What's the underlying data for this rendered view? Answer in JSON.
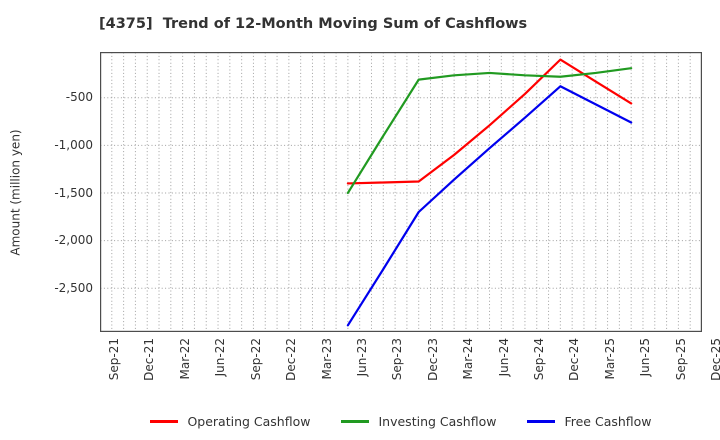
{
  "colors": {
    "background": "#ffffff",
    "text": "#333333",
    "axis_border": "#4d4d4d",
    "gridline": "#a0a0a0"
  },
  "chart_data": {
    "type": "line",
    "title": "[4375]  Trend of 12-Month Moving Sum of Cashflows",
    "ylabel": "Amount (million yen)",
    "xlabel": "",
    "categories": [
      "Sep-21",
      "Dec-21",
      "Mar-22",
      "Jun-22",
      "Sep-22",
      "Dec-22",
      "Mar-23",
      "Jun-23",
      "Sep-23",
      "Dec-23",
      "Mar-24",
      "Jun-24",
      "Sep-24",
      "Dec-24",
      "Mar-25",
      "Jun-25",
      "Sep-25",
      "Dec-25"
    ],
    "x_minor_gridlines_per_interval": 3,
    "ylim": [
      -2960,
      -20
    ],
    "yticks": [
      {
        "value": -500,
        "label": "-500"
      },
      {
        "value": -1000,
        "label": "-1,000"
      },
      {
        "value": -1500,
        "label": "-1,500"
      },
      {
        "value": -2000,
        "label": "-2,000"
      },
      {
        "value": -2500,
        "label": "-2,500"
      }
    ],
    "grid": true,
    "grid_style": "dotted",
    "legend_position": "bottom-center",
    "series": [
      {
        "name": "Operating Cashflow",
        "color": "#ff0000",
        "start_category_index": 7,
        "values": [
          -1400,
          -1390,
          -1380,
          -1100,
          -790,
          -460,
          -100,
          -330,
          -560
        ]
      },
      {
        "name": "Investing Cashflow",
        "color": "#219a21",
        "start_category_index": 7,
        "values": [
          -1500,
          -900,
          -310,
          -265,
          -240,
          -265,
          -280,
          -240,
          -190
        ]
      },
      {
        "name": "Free Cashflow",
        "color": "#0000ee",
        "start_category_index": 7,
        "values": [
          -2890,
          -2300,
          -1700,
          -1360,
          -1030,
          -710,
          -380,
          -570,
          -760
        ]
      }
    ]
  }
}
